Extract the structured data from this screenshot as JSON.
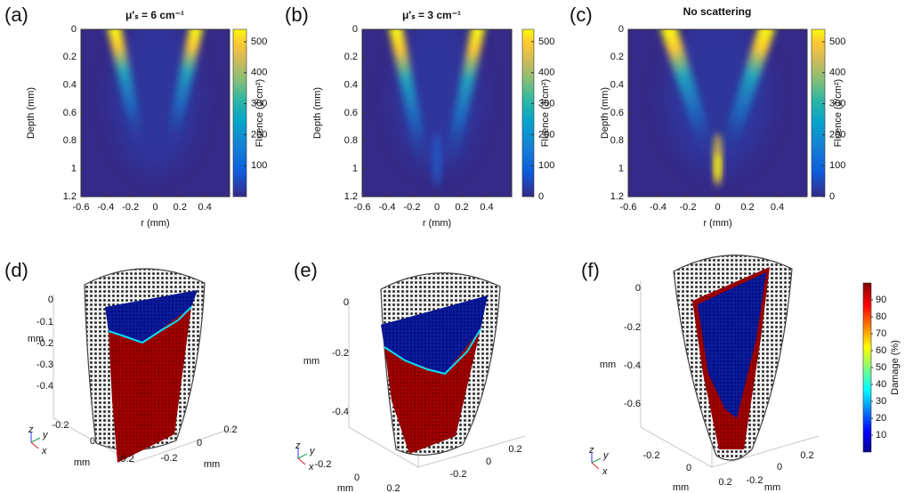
{
  "chart_data": [
    {
      "type": "heatmap",
      "panel_label": "(a)",
      "title": "μ′ₛ = 6 cm⁻¹",
      "xlabel": "r (mm)",
      "ylabel": "Depth (mm)",
      "xlim": [
        -0.6,
        0.6
      ],
      "ylim": [
        0,
        1.2
      ],
      "y_inverted": true,
      "xticks": [
        -0.6,
        -0.4,
        -0.2,
        0,
        0.2,
        0.4
      ],
      "yticks": [
        0,
        0.2,
        0.4,
        0.6,
        0.8,
        1,
        1.2
      ],
      "colorbar": {
        "label": "Fluence (J/cm²)",
        "lim": [
          0,
          540
        ],
        "ticks": [
          100,
          200,
          300,
          400,
          500
        ]
      }
    },
    {
      "type": "heatmap",
      "panel_label": "(b)",
      "title": "μ′ₛ = 3 cm⁻¹",
      "xlabel": "r (mm)",
      "ylabel": "Depth (mm)",
      "xlim": [
        -0.6,
        0.6
      ],
      "ylim": [
        0,
        1.2
      ],
      "y_inverted": true,
      "xticks": [
        -0.6,
        -0.4,
        -0.2,
        0,
        0.2,
        0.4
      ],
      "yticks": [
        0,
        0.2,
        0.4,
        0.6,
        0.8,
        1,
        1.2
      ],
      "colorbar": {
        "label": "Fluence (J/cm²)",
        "lim": [
          0,
          540
        ],
        "ticks": [
          0,
          100,
          200,
          300,
          400,
          500
        ]
      }
    },
    {
      "type": "heatmap",
      "panel_label": "(c)",
      "title": "No scattering",
      "xlabel": "r (mm)",
      "ylabel": "Depth (mm)",
      "xlim": [
        -0.6,
        0.6
      ],
      "ylim": [
        0,
        1.2
      ],
      "y_inverted": true,
      "xticks": [
        -0.6,
        -0.4,
        -0.2,
        0,
        0.2,
        0.4
      ],
      "yticks": [
        0,
        0.2,
        0.4,
        0.6,
        0.8,
        1,
        1.2
      ],
      "colorbar": {
        "label": "Fluence (J/cm²)",
        "lim": [
          0,
          540
        ],
        "ticks": [
          0,
          100,
          200,
          300,
          400,
          500
        ]
      }
    },
    {
      "type": "surface3d",
      "panel_label": "(d)",
      "xlabel": "mm",
      "ylabel": "mm",
      "zlabel": "mm",
      "xticks": [
        -0.2,
        0,
        0.2
      ],
      "yticks": [
        0.2,
        0,
        -0.2
      ],
      "zticks": [
        0,
        -0.1,
        -0.2,
        -0.3,
        -0.4
      ],
      "triad_labels": [
        "z",
        "y",
        "x"
      ]
    },
    {
      "type": "surface3d",
      "panel_label": "(e)",
      "xlabel": "mm",
      "zlabel": "mm",
      "xticks": [
        -0.2,
        0,
        0.2
      ],
      "yticks": [
        0.2,
        0,
        -0.2
      ],
      "zticks": [
        0,
        -0.2,
        -0.4
      ],
      "triad_labels": [
        "z",
        "y",
        "x"
      ]
    },
    {
      "type": "surface3d",
      "panel_label": "(f)",
      "xlabel": "mm",
      "ylabel": "mm",
      "zlabel": "mm",
      "xticks": [
        -0.2,
        0,
        0.2
      ],
      "yticks": [
        0.2,
        0,
        -0.2
      ],
      "zticks": [
        0,
        -0.2,
        -0.4,
        -0.6
      ],
      "triad_labels": [
        "z",
        "y",
        "x"
      ],
      "colorbar": {
        "label": "Damage (%)",
        "lim": [
          0,
          100
        ],
        "ticks": [
          10,
          20,
          30,
          40,
          50,
          60,
          70,
          80,
          90
        ]
      }
    }
  ]
}
